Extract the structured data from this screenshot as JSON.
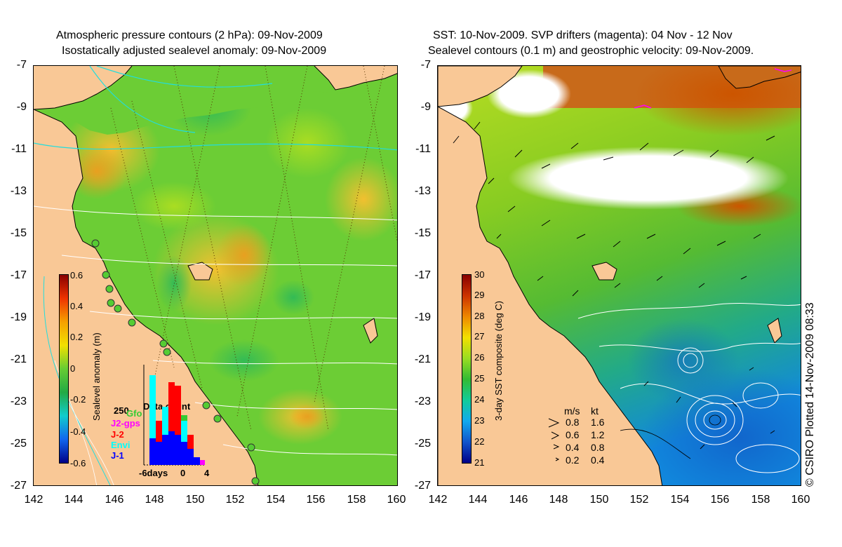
{
  "left_panel": {
    "title_line1": "Atmospheric pressure contours (2 hPa): 09-Nov-2009",
    "title_line2": "Isostatically adjusted sealevel anomaly: 09-Nov-2009",
    "colorbar_label": "Sealevel anomaly (m)",
    "colorbar_ticks": [
      "0.6",
      "0.4",
      "0.2",
      "0",
      "-0.2",
      "-0.4",
      "-0.6"
    ],
    "inset": {
      "title": "Data count",
      "count_label": "250",
      "legend": [
        {
          "label": "Gfo",
          "color": "#33cc33"
        },
        {
          "label": "J2-gps",
          "color": "#ff00ff"
        },
        {
          "label": "J-2",
          "color": "#ff0000"
        },
        {
          "label": "Envi",
          "color": "#00ffff"
        },
        {
          "label": "J-1",
          "color": "#0000ff"
        }
      ],
      "xticks": [
        "-6days",
        "0",
        "4"
      ]
    }
  },
  "right_panel": {
    "title_line1": "SST: 10-Nov-2009. SVP drifters (magenta): 04 Nov - 12 Nov",
    "title_line2": "Sealevel contours (0.1 m) and geostrophic velocity: 09-Nov-2009.",
    "colorbar_label": "3-day SST composite (deg C)",
    "colorbar_ticks": [
      "30",
      "29",
      "28",
      "27",
      "26",
      "25",
      "24",
      "23",
      "22",
      "21"
    ],
    "speed_scale": {
      "header_ms": "m/s",
      "header_kt": "kt",
      "rows": [
        {
          "ms": "0.8",
          "kt": "1.6"
        },
        {
          "ms": "0.6",
          "kt": "1.2"
        },
        {
          "ms": "0.4",
          "kt": "0.8"
        },
        {
          "ms": "0.2",
          "kt": "0.4"
        }
      ]
    }
  },
  "axes": {
    "y_ticks": [
      "-7",
      "-9",
      "-11",
      "-13",
      "-15",
      "-17",
      "-19",
      "-21",
      "-23",
      "-25",
      "-27"
    ],
    "x_ticks": [
      "142",
      "144",
      "146",
      "148",
      "150",
      "152",
      "154",
      "156",
      "158",
      "160"
    ]
  },
  "credit": "© CSIRO Plotted 14-Nov-2009 08:33",
  "colors": {
    "land": "#f9c896",
    "sla_base": "#66cc33",
    "sst_warm": "#cc5500",
    "sst_mid": "#66cc33",
    "sst_cool": "#1188dd",
    "pressure_contour": "#22dddd"
  }
}
